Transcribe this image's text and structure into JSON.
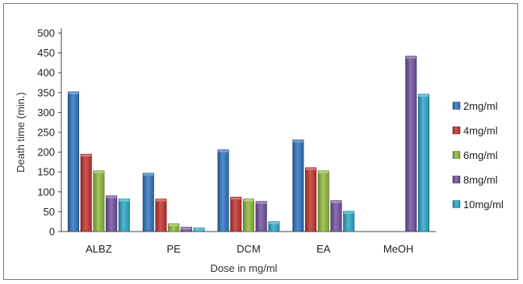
{
  "chart_data": {
    "type": "bar",
    "title": "",
    "xlabel": "Dose in mg/ml",
    "ylabel": "Death time (min.)",
    "ylim": [
      0,
      500
    ],
    "yticks": [
      "0",
      "50",
      "100",
      "150",
      "200",
      "250",
      "300",
      "350",
      "400",
      "450",
      "500"
    ],
    "grid": false,
    "legend_position": "right",
    "categories": [
      "ALBZ",
      "PE",
      "DCM",
      "EA",
      "MeOH"
    ],
    "series": [
      {
        "name": "2mg/ml",
        "color": "#2e73bf",
        "values": [
          352,
          147,
          206,
          231,
          null
        ]
      },
      {
        "name": "4mg/ml",
        "color": "#c0322e",
        "values": [
          195,
          82,
          87,
          161,
          null
        ]
      },
      {
        "name": "6mg/ml",
        "color": "#8fb83a",
        "values": [
          153,
          20,
          82,
          153,
          null
        ]
      },
      {
        "name": "8mg/ml",
        "color": "#7150a0",
        "values": [
          90,
          11,
          76,
          78,
          442
        ]
      },
      {
        "name": "10mg/ml",
        "color": "#2aa7c6",
        "values": [
          82,
          9,
          25,
          51,
          346
        ]
      }
    ]
  }
}
